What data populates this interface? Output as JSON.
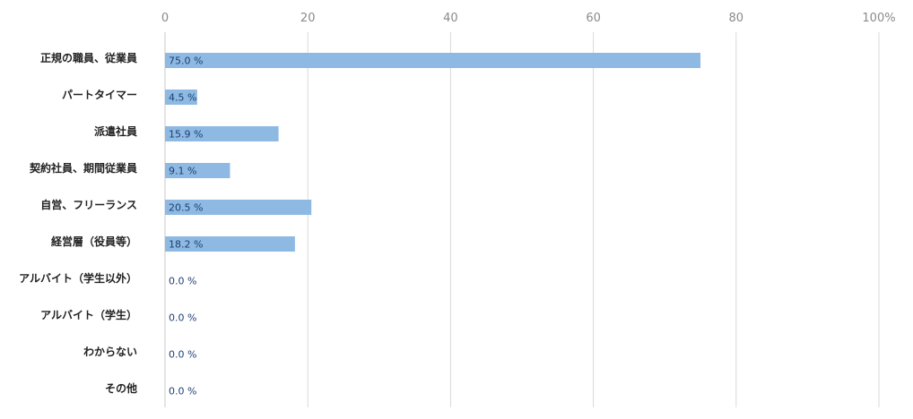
{
  "chart_data": {
    "type": "bar",
    "orientation": "horizontal",
    "categories": [
      "正規の職員、従業員",
      "パートタイマー",
      "派遣社員",
      "契約社員、期間従業員",
      "自営、フリーランス",
      "経営層（役員等）",
      "アルバイト（学生以外）",
      "アルバイト（学生）",
      "わからない",
      "その他"
    ],
    "values": [
      75.0,
      4.5,
      15.9,
      9.1,
      20.5,
      18.2,
      0.0,
      0.0,
      0.0,
      0.0
    ],
    "value_labels": [
      "75.0 %",
      "4.5 %",
      "15.9 %",
      "9.1 %",
      "20.5 %",
      "18.2 %",
      "0.0 %",
      "0.0 %",
      "0.0 %",
      "0.0 %"
    ],
    "x_ticks": [
      "0",
      "20",
      "40",
      "60",
      "80",
      "100%"
    ],
    "xlim": [
      0,
      100
    ],
    "x_axis_position": "top",
    "grid": true,
    "bar_color": "#8db9e2",
    "value_label_color": "#1d3f73",
    "title": "",
    "xlabel": "",
    "ylabel": ""
  }
}
